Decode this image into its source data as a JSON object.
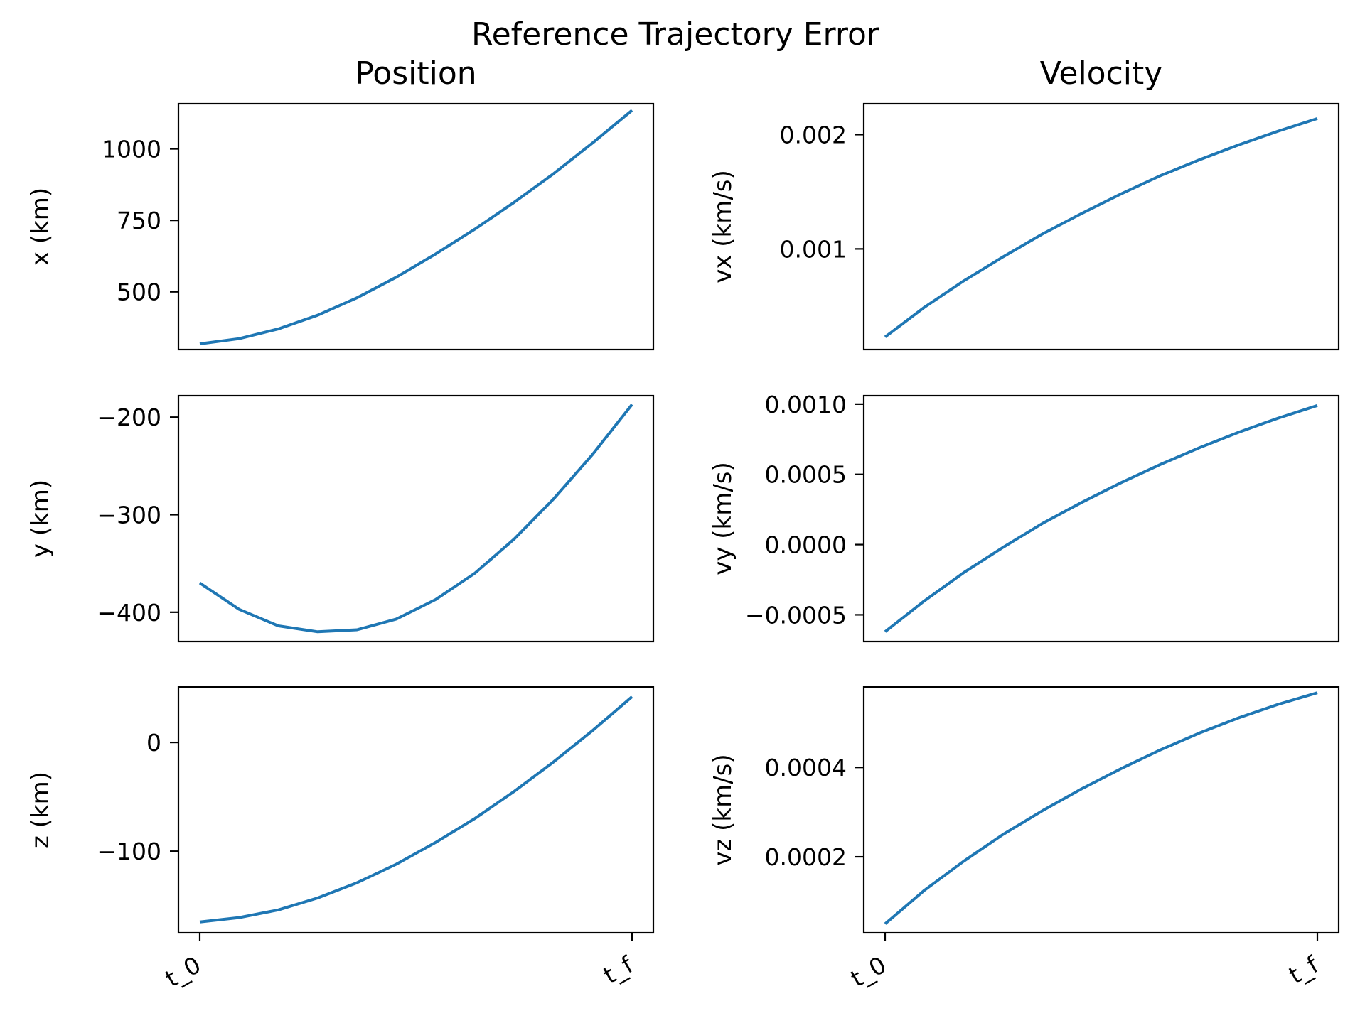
{
  "figure": {
    "suptitle": "Reference Trajectory Error",
    "column_titles": [
      "Position",
      "Velocity"
    ],
    "line_color": "#1f77b4",
    "background": "#ffffff"
  },
  "chart_data": [
    {
      "type": "line",
      "row": 0,
      "col": 0,
      "title": "Position",
      "xlabel": "",
      "ylabel": "x (km)",
      "x": [
        0,
        1,
        2,
        3,
        4,
        5,
        6,
        7,
        8,
        9,
        10,
        11
      ],
      "y": [
        318,
        336,
        370,
        418,
        479,
        551,
        632,
        719,
        813,
        913,
        1021,
        1135
      ],
      "ylim": [
        298,
        1158
      ],
      "yticks": [
        500,
        750,
        1000
      ],
      "ytick_labels": [
        "500",
        "750",
        "1000"
      ],
      "xticks": [],
      "xtick_labels": [],
      "grid": false
    },
    {
      "type": "line",
      "row": 0,
      "col": 1,
      "title": "Velocity",
      "xlabel": "",
      "ylabel": "vx (km/s)",
      "x": [
        0,
        1,
        2,
        3,
        4,
        5,
        6,
        7,
        8,
        9,
        10,
        11
      ],
      "y": [
        0.00023,
        0.00049,
        0.00072,
        0.00093,
        0.00113,
        0.00131,
        0.00148,
        0.00164,
        0.00178,
        0.00191,
        0.00203,
        0.00214
      ],
      "ylim": [
        0.00012,
        0.00227
      ],
      "yticks": [
        0.001,
        0.002
      ],
      "ytick_labels": [
        "0.001",
        "0.002"
      ],
      "xticks": [],
      "xtick_labels": [],
      "grid": false
    },
    {
      "type": "line",
      "row": 1,
      "col": 0,
      "title": "",
      "xlabel": "",
      "ylabel": "y (km)",
      "x": [
        0,
        1,
        2,
        3,
        4,
        5,
        6,
        7,
        8,
        9,
        10,
        11
      ],
      "y": [
        -370,
        -397,
        -414,
        -420,
        -418,
        -407,
        -387,
        -360,
        -325,
        -284,
        -238,
        -187
      ],
      "ylim": [
        -430,
        -178
      ],
      "yticks": [
        -400,
        -300,
        -200
      ],
      "ytick_labels": [
        "−400",
        "−300",
        "−200"
      ],
      "xticks": [],
      "xtick_labels": [],
      "grid": false
    },
    {
      "type": "line",
      "row": 1,
      "col": 1,
      "title": "",
      "xlabel": "",
      "ylabel": "vy (km/s)",
      "x": [
        0,
        1,
        2,
        3,
        4,
        5,
        6,
        7,
        8,
        9,
        10,
        11
      ],
      "y": [
        -0.00062,
        -0.0004,
        -0.0002,
        -2e-05,
        0.00015,
        0.0003,
        0.00044,
        0.00057,
        0.00069,
        0.0008,
        0.0009,
        0.00099
      ],
      "ylim": [
        -0.00069,
        0.00106
      ],
      "yticks": [
        -0.0005,
        0.0,
        0.0005,
        0.001
      ],
      "ytick_labels": [
        "−0.0005",
        "0.0000",
        "0.0005",
        "0.0010"
      ],
      "xticks": [],
      "xtick_labels": [],
      "grid": false
    },
    {
      "type": "line",
      "row": 2,
      "col": 0,
      "title": "",
      "xlabel": "",
      "ylabel": "z (km)",
      "x": [
        0,
        1,
        2,
        3,
        4,
        5,
        6,
        7,
        8,
        9,
        10,
        11
      ],
      "y": [
        -165,
        -161,
        -154,
        -143,
        -129,
        -112,
        -92,
        -70,
        -45,
        -18,
        11,
        42
      ],
      "ylim": [
        -175,
        51
      ],
      "yticks": [
        -100,
        0
      ],
      "ytick_labels": [
        "−100",
        "0"
      ],
      "xticks": [
        0,
        11
      ],
      "xtick_labels": [
        "t_0",
        "t_f"
      ],
      "grid": false
    },
    {
      "type": "line",
      "row": 2,
      "col": 1,
      "title": "",
      "xlabel": "",
      "ylabel": "vz (km/s)",
      "x": [
        0,
        1,
        2,
        3,
        4,
        5,
        6,
        7,
        8,
        9,
        10,
        11
      ],
      "y": [
        5e-05,
        0.000125,
        0.00019,
        0.00025,
        0.000303,
        0.000352,
        0.000397,
        0.000439,
        0.000477,
        0.000511,
        0.000541,
        0.000567
      ],
      "ylim": [
        3e-05,
        0.00058
      ],
      "yticks": [
        0.0002,
        0.0004
      ],
      "ytick_labels": [
        "0.0002",
        "0.0004"
      ],
      "xticks": [
        0,
        11
      ],
      "xtick_labels": [
        "t_0",
        "t_f"
      ],
      "grid": false
    }
  ]
}
